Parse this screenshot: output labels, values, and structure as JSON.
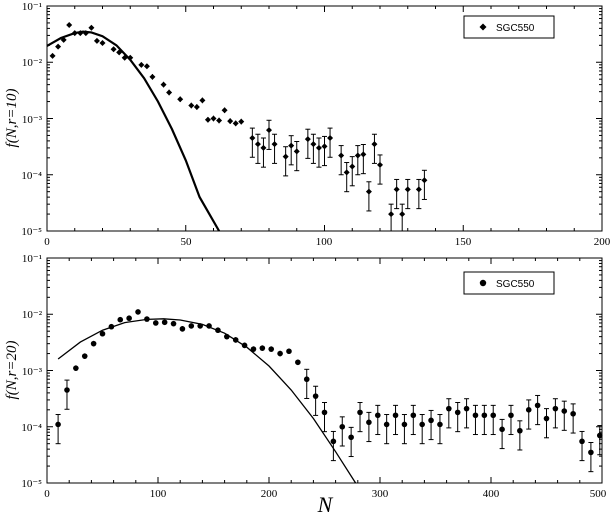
{
  "chart_data": [
    {
      "type": "scatter",
      "ylabel": "f(N,r=10)",
      "xlabel": "",
      "xlim": [
        0,
        200
      ],
      "ylim": [
        1e-05,
        0.1
      ],
      "yscale": "log",
      "x_ticks": [
        "0",
        "50",
        "100",
        "150",
        "200"
      ],
      "y_ticks": [
        "10⁻¹",
        "10⁻²",
        "10⁻³",
        "10⁻⁴",
        "10⁻⁵"
      ],
      "legend": {
        "position": "top-right",
        "entries": [
          "SGC550"
        ]
      },
      "series": [
        {
          "name": "SGC550",
          "marker": "diamond",
          "points": [
            [
              2,
              0.013
            ],
            [
              4,
              0.019
            ],
            [
              6,
              0.025
            ],
            [
              8,
              0.046
            ],
            [
              10,
              0.033
            ],
            [
              12,
              0.033
            ],
            [
              14,
              0.033
            ],
            [
              16,
              0.041
            ],
            [
              18,
              0.024
            ],
            [
              20,
              0.022
            ],
            [
              24,
              0.017
            ],
            [
              26,
              0.015
            ],
            [
              28,
              0.012
            ],
            [
              30,
              0.012
            ],
            [
              34,
              0.009
            ],
            [
              36,
              0.0085
            ],
            [
              38,
              0.0055
            ],
            [
              42,
              0.004
            ],
            [
              44,
              0.0029
            ],
            [
              48,
              0.0022
            ],
            [
              52,
              0.0017
            ],
            [
              54,
              0.0016
            ],
            [
              56,
              0.0021
            ],
            [
              58,
              0.00095
            ],
            [
              60,
              0.001
            ],
            [
              62,
              0.00092
            ],
            [
              64,
              0.0014
            ],
            [
              66,
              0.0009
            ],
            [
              68,
              0.00082
            ],
            [
              70,
              0.00088
            ],
            [
              74,
              0.00045
            ],
            [
              76,
              0.00035
            ],
            [
              78,
              0.0003
            ],
            [
              80,
              0.00062
            ],
            [
              82,
              0.00035
            ],
            [
              86,
              0.00021
            ],
            [
              88,
              0.00033
            ],
            [
              90,
              0.00026
            ],
            [
              94,
              0.00043
            ],
            [
              96,
              0.00035
            ],
            [
              98,
              0.0003
            ],
            [
              100,
              0.00032
            ],
            [
              102,
              0.00045
            ],
            [
              106,
              0.00022
            ],
            [
              108,
              0.00011
            ],
            [
              110,
              0.00014
            ],
            [
              112,
              0.00022
            ],
            [
              114,
              0.00023
            ],
            [
              116,
              5e-05
            ],
            [
              118,
              0.00035
            ],
            [
              120,
              0.00015
            ],
            [
              124,
              2e-05
            ],
            [
              126,
              5.5e-05
            ],
            [
              128,
              2e-05
            ],
            [
              130,
              5.5e-05
            ],
            [
              134,
              5.5e-05
            ],
            [
              136,
              8e-05
            ]
          ]
        }
      ],
      "fit_curve": {
        "type": "gaussian",
        "samples": [
          [
            0,
            0.0195
          ],
          [
            5,
            0.027
          ],
          [
            10,
            0.033
          ],
          [
            13,
            0.035
          ],
          [
            16,
            0.034
          ],
          [
            20,
            0.029
          ],
          [
            25,
            0.02
          ],
          [
            30,
            0.011
          ],
          [
            35,
            0.0052
          ],
          [
            40,
            0.002
          ],
          [
            45,
            0.00065
          ],
          [
            50,
            0.00018
          ],
          [
            55,
            4e-05
          ],
          [
            62,
            1e-05
          ]
        ]
      }
    },
    {
      "type": "scatter",
      "ylabel": "f(N,r=20)",
      "xlabel": "N",
      "xlim": [
        0,
        500
      ],
      "ylim": [
        1e-05,
        0.1
      ],
      "yscale": "log",
      "x_ticks": [
        "0",
        "100",
        "200",
        "300",
        "400",
        "500"
      ],
      "y_ticks": [
        "10⁻¹",
        "10⁻²",
        "10⁻³",
        "10⁻⁴",
        "10⁻⁵"
      ],
      "legend": {
        "position": "top-right",
        "entries": [
          "SGC550"
        ]
      },
      "series": [
        {
          "name": "SGC550",
          "marker": "circle",
          "points": [
            [
              10,
              0.00011
            ],
            [
              18,
              0.00045
            ],
            [
              26,
              0.0011
            ],
            [
              34,
              0.0018
            ],
            [
              42,
              0.003
            ],
            [
              50,
              0.0045
            ],
            [
              58,
              0.006
            ],
            [
              66,
              0.008
            ],
            [
              74,
              0.0085
            ],
            [
              82,
              0.011
            ],
            [
              90,
              0.0082
            ],
            [
              98,
              0.007
            ],
            [
              106,
              0.0072
            ],
            [
              114,
              0.0068
            ],
            [
              122,
              0.0055
            ],
            [
              130,
              0.0062
            ],
            [
              138,
              0.0062
            ],
            [
              146,
              0.0062
            ],
            [
              154,
              0.0052
            ],
            [
              162,
              0.004
            ],
            [
              170,
              0.0035
            ],
            [
              178,
              0.0028
            ],
            [
              186,
              0.0024
            ],
            [
              194,
              0.0025
            ],
            [
              202,
              0.0024
            ],
            [
              210,
              0.002
            ],
            [
              218,
              0.0022
            ],
            [
              226,
              0.0014
            ],
            [
              234,
              0.0007
            ],
            [
              242,
              0.00035
            ],
            [
              250,
              0.00018
            ],
            [
              258,
              5.5e-05
            ],
            [
              266,
              0.0001
            ],
            [
              274,
              6.5e-05
            ],
            [
              282,
              0.00018
            ],
            [
              290,
              0.00012
            ],
            [
              298,
              0.00016
            ],
            [
              306,
              0.00011
            ],
            [
              314,
              0.00016
            ],
            [
              322,
              0.00011
            ],
            [
              330,
              0.00016
            ],
            [
              338,
              0.00011
            ],
            [
              346,
              0.00013
            ],
            [
              354,
              0.00011
            ],
            [
              362,
              0.00021
            ],
            [
              370,
              0.00018
            ],
            [
              378,
              0.00021
            ],
            [
              386,
              0.00016
            ],
            [
              394,
              0.00016
            ],
            [
              402,
              0.00016
            ],
            [
              410,
              9e-05
            ],
            [
              418,
              0.00016
            ],
            [
              426,
              8.5e-05
            ],
            [
              434,
              0.0002
            ],
            [
              442,
              0.00024
            ],
            [
              450,
              0.00014
            ],
            [
              458,
              0.00021
            ],
            [
              466,
              0.00019
            ],
            [
              474,
              0.00017
            ],
            [
              482,
              5.5e-05
            ],
            [
              490,
              3.5e-05
            ],
            [
              498,
              7e-05
            ]
          ]
        }
      ],
      "fit_curve": {
        "type": "gaussian",
        "samples": [
          [
            10,
            0.0016
          ],
          [
            30,
            0.0032
          ],
          [
            50,
            0.0052
          ],
          [
            70,
            0.0071
          ],
          [
            90,
            0.0081
          ],
          [
            105,
            0.0083
          ],
          [
            120,
            0.0079
          ],
          [
            140,
            0.0066
          ],
          [
            160,
            0.0046
          ],
          [
            180,
            0.0026
          ],
          [
            200,
            0.0012
          ],
          [
            220,
            0.00045
          ],
          [
            240,
            0.00014
          ],
          [
            260,
            3.6e-05
          ],
          [
            278,
            1e-05
          ]
        ]
      }
    }
  ]
}
